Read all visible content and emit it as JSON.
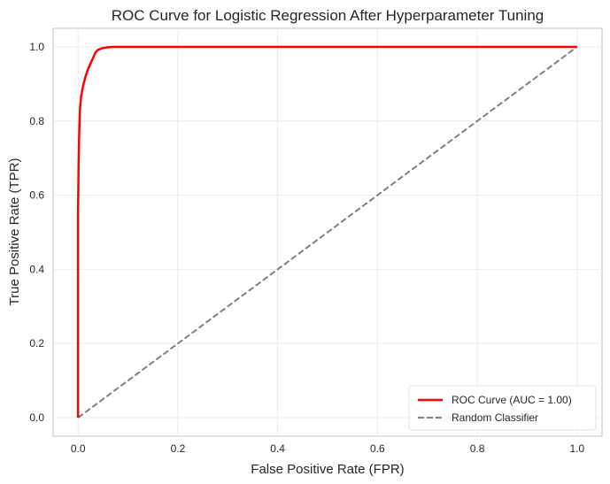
{
  "chart_data": {
    "type": "line",
    "title": "ROC Curve for Logistic Regression After Hyperparameter Tuning",
    "xlabel": "False Positive Rate (FPR)",
    "ylabel": "True Positive Rate (TPR)",
    "xlim": [
      -0.05,
      1.05
    ],
    "ylim": [
      -0.05,
      1.05
    ],
    "xticks": [
      "0.0",
      "0.2",
      "0.4",
      "0.6",
      "0.8",
      "1.0"
    ],
    "yticks": [
      "0.0",
      "0.2",
      "0.4",
      "0.6",
      "0.8",
      "1.0"
    ],
    "grid": true,
    "legend_position": "lower-right",
    "series": [
      {
        "name": "ROC Curve (AUC = 1.00)",
        "color": "#ff0000",
        "style": "solid",
        "x": [
          0.0,
          0.0,
          0.001,
          0.002,
          0.003,
          0.004,
          0.006,
          0.008,
          0.011,
          0.015,
          0.02,
          0.025,
          0.03,
          0.035,
          0.04,
          0.05,
          0.06,
          0.07,
          0.1,
          0.5,
          1.0
        ],
        "y": [
          0.0,
          0.55,
          0.68,
          0.75,
          0.8,
          0.835,
          0.865,
          0.88,
          0.9,
          0.92,
          0.94,
          0.955,
          0.97,
          0.985,
          0.992,
          0.997,
          0.999,
          1.0,
          1.0,
          1.0,
          1.0
        ]
      },
      {
        "name": "Random Classifier",
        "color": "#808080",
        "style": "dashed",
        "x": [
          0.0,
          1.0
        ],
        "y": [
          0.0,
          1.0
        ]
      }
    ]
  }
}
